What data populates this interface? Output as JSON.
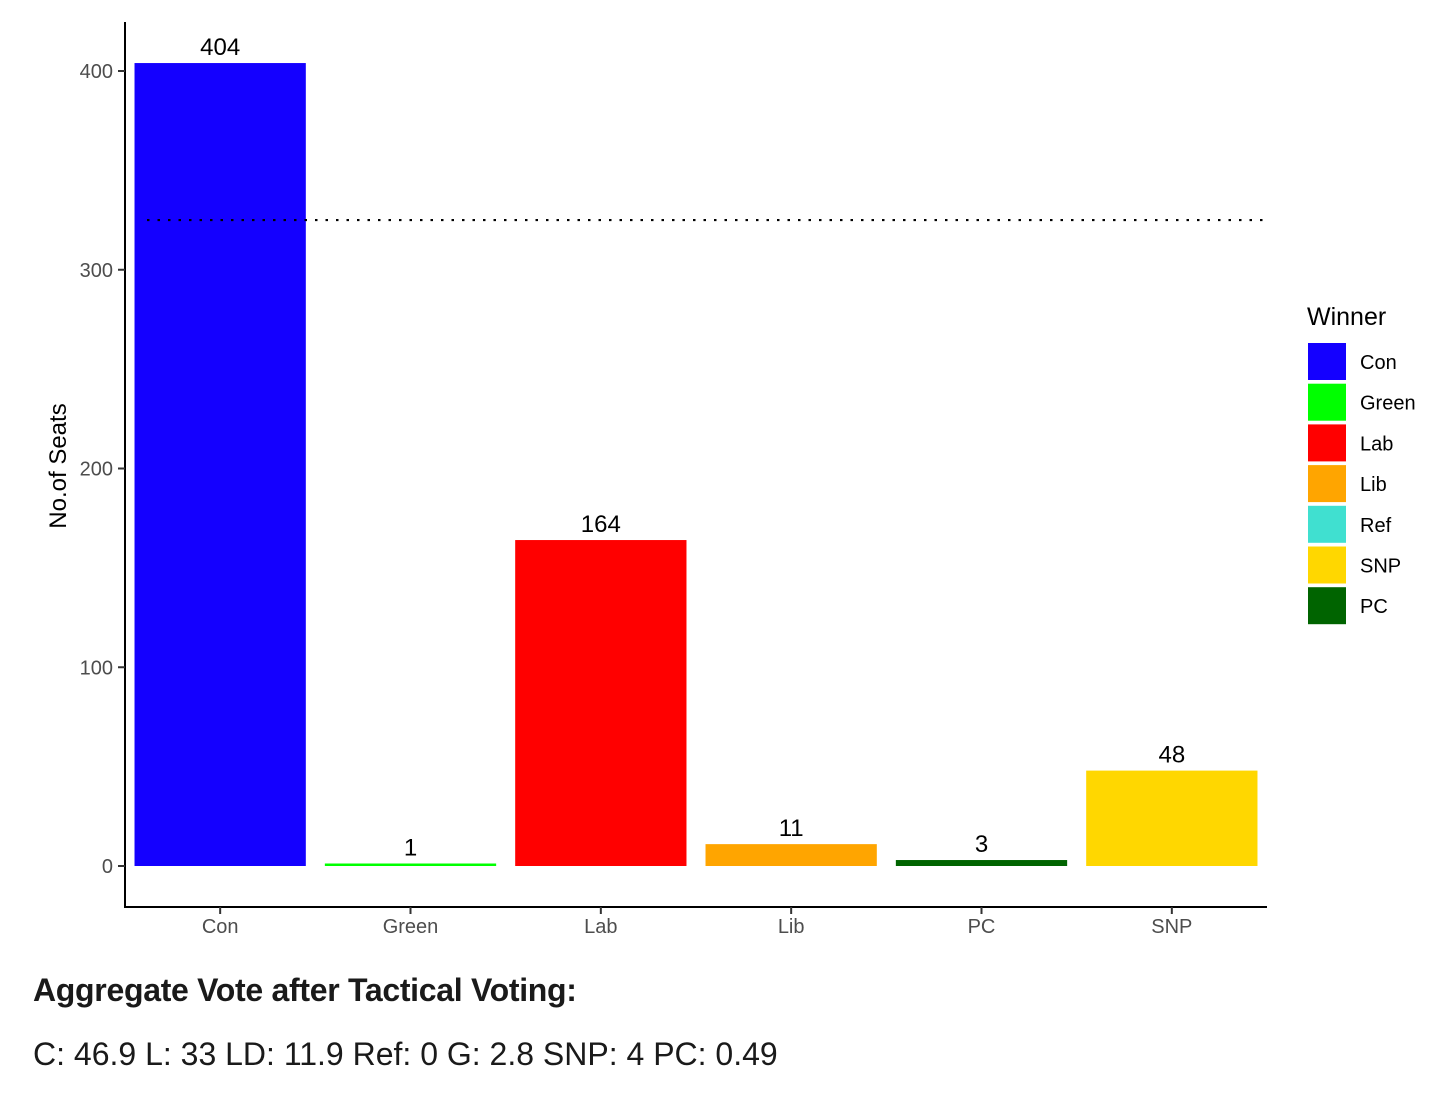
{
  "chart_data": {
    "type": "bar",
    "categories": [
      "Con",
      "Green",
      "Lab",
      "Lib",
      "PC",
      "SNP"
    ],
    "values": [
      404,
      1,
      164,
      11,
      3,
      48
    ],
    "bar_colors": [
      "#1400FF",
      "#00FF00",
      "#FF0000",
      "#FFA500",
      "#006400",
      "#FFD700"
    ],
    "data_labels": [
      "404",
      "1",
      "164",
      "11",
      "3",
      "48"
    ],
    "ylabel": "No.of Seats",
    "xlabel": "",
    "ylim": [
      -20,
      420
    ],
    "yticks": [
      0,
      100,
      200,
      300,
      400
    ],
    "reference_line": {
      "value": 325,
      "style": "dotted"
    },
    "grid": false,
    "legend": {
      "title": "Winner",
      "position": "right",
      "entries": [
        {
          "name": "Con",
          "color": "#1400FF"
        },
        {
          "name": "Green",
          "color": "#00FF00"
        },
        {
          "name": "Lab",
          "color": "#FF0000"
        },
        {
          "name": "Lib",
          "color": "#FFA500"
        },
        {
          "name": "Ref",
          "color": "#40E0D0"
        },
        {
          "name": "SNP",
          "color": "#FFD700"
        },
        {
          "name": "PC",
          "color": "#006400"
        }
      ]
    }
  },
  "caption": {
    "heading": "Aggregate Vote after Tactical Voting:",
    "body": "C: 46.9 L: 33 LD: 11.9 Ref: 0 G: 2.8 SNP: 4 PC: 0.49"
  }
}
